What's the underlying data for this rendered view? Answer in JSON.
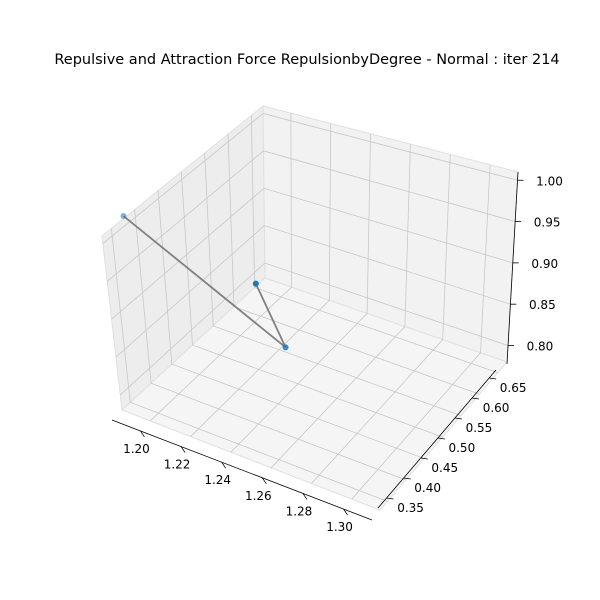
{
  "chart_data": {
    "type": "scatter3d",
    "title": "Repulsive and Attraction Force RepulsionbyDegree - Normal : iter 214",
    "x_ticks": [
      "1.20",
      "1.22",
      "1.24",
      "1.26",
      "1.28",
      "1.30"
    ],
    "y_ticks": [
      "0.35",
      "0.40",
      "0.45",
      "0.50",
      "0.55",
      "0.60",
      "0.65"
    ],
    "z_ticks": [
      "0.80",
      "0.85",
      "0.90",
      "0.95",
      "1.00"
    ],
    "points": [
      {
        "x": 1.195,
        "y": 0.62,
        "z": 1.0
      },
      {
        "x": 1.287,
        "y": 0.55,
        "z": 0.86
      },
      {
        "x": 1.302,
        "y": 0.37,
        "z": 0.8
      }
    ],
    "edges": [
      [
        0,
        1
      ],
      [
        1,
        2
      ]
    ],
    "point_color": "#1f77b4",
    "edge_color": "#808080",
    "grid": true
  }
}
